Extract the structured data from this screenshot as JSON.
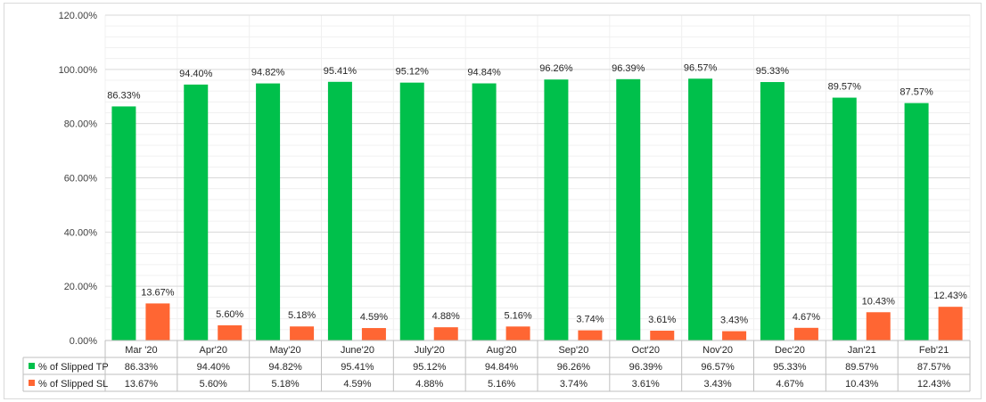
{
  "chart_data": {
    "type": "bar",
    "categories": [
      "Mar '20",
      "Apr'20",
      "May'20",
      "June'20",
      "July'20",
      "Aug'20",
      "Sep'20",
      "Oct'20",
      "Nov'20",
      "Dec'20",
      "Jan'21",
      "Feb'21"
    ],
    "series": [
      {
        "name": "% of Slipped TP",
        "color": "#00c04b",
        "values": [
          86.33,
          94.4,
          94.82,
          95.41,
          95.12,
          94.84,
          96.26,
          96.39,
          96.57,
          95.33,
          89.57,
          87.57
        ],
        "labels": [
          "86.33%",
          "94.40%",
          "94.82%",
          "95.41%",
          "95.12%",
          "94.84%",
          "96.26%",
          "96.39%",
          "96.57%",
          "95.33%",
          "89.57%",
          "87.57%"
        ]
      },
      {
        "name": "% of Slipped SL",
        "color": "#ff6633",
        "values": [
          13.67,
          5.6,
          5.18,
          4.59,
          4.88,
          5.16,
          3.74,
          3.61,
          3.43,
          4.67,
          10.43,
          12.43
        ],
        "labels": [
          "13.67%",
          "5.60%",
          "5.18%",
          "4.59%",
          "4.88%",
          "5.16%",
          "3.74%",
          "3.61%",
          "3.43%",
          "4.67%",
          "10.43%",
          "12.43%"
        ]
      }
    ],
    "ylim": [
      0,
      120
    ],
    "yticks": [
      "0.00%",
      "20.00%",
      "40.00%",
      "60.00%",
      "80.00%",
      "100.00%",
      "120.00%"
    ],
    "grid": true,
    "legend": "data-table-bottom"
  }
}
